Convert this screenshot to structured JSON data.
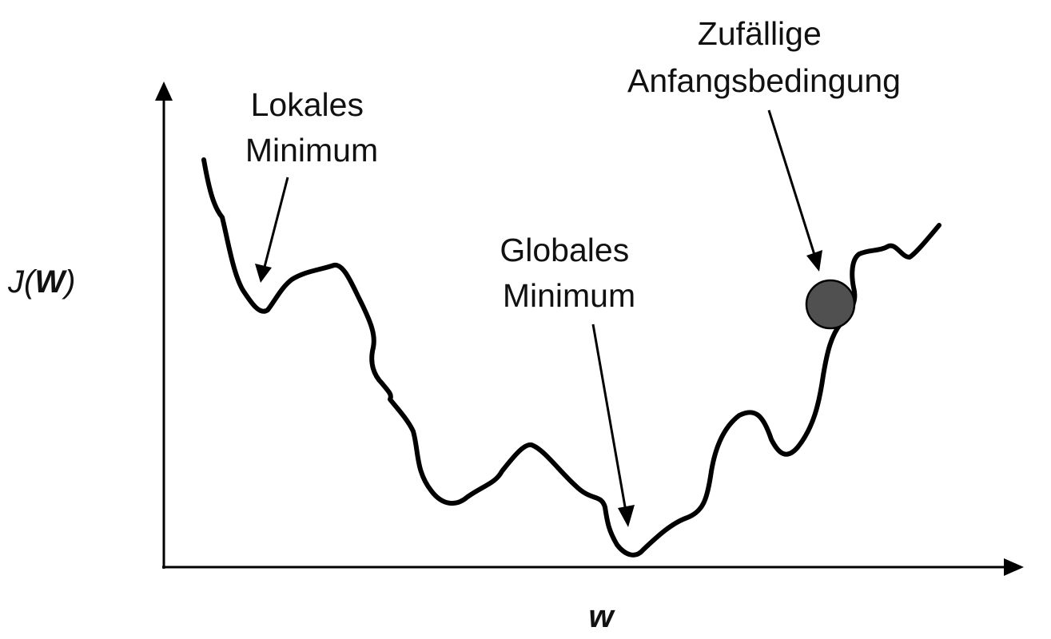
{
  "annotations": {
    "local_min": [
      "Lokales",
      "Minimum"
    ],
    "global_min": [
      "Globales",
      "Minimum"
    ],
    "random_start": [
      "Zufällige",
      "Anfangsbedingung"
    ]
  },
  "axes": {
    "y_label_prefix": "J(",
    "y_label_var": "W",
    "y_label_suffix": ")",
    "x_label": "w"
  },
  "colors": {
    "curve": "#000000",
    "ball": "#505050"
  }
}
